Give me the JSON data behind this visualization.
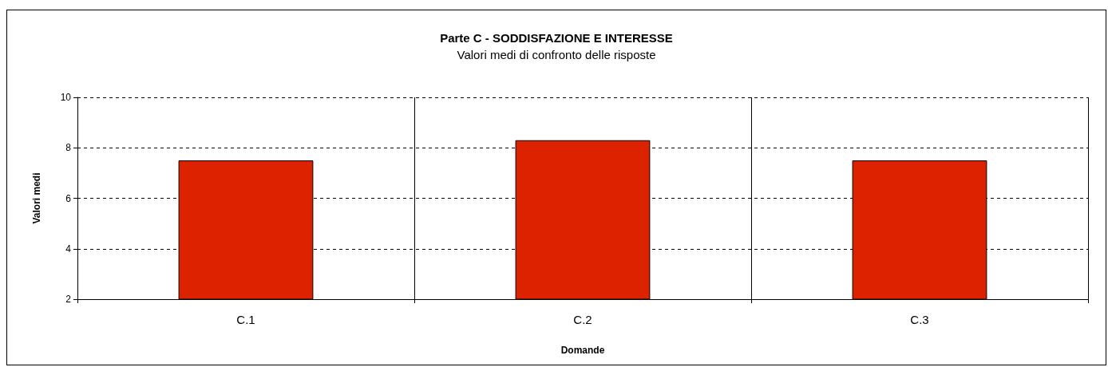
{
  "chart_data": {
    "type": "bar",
    "title": "Parte C - SODDISFAZIONE E INTERESSE",
    "subtitle": "Valori medi di confronto delle risposte",
    "xlabel": "Domande",
    "ylabel": "Valori medi",
    "categories": [
      "C.1",
      "C.2",
      "C.3"
    ],
    "values": [
      7.5,
      8.3,
      7.5
    ],
    "color": "#dd2200",
    "ylim": [
      2,
      10
    ],
    "yticks": [
      2,
      4,
      6,
      8,
      10
    ],
    "grid": true
  }
}
